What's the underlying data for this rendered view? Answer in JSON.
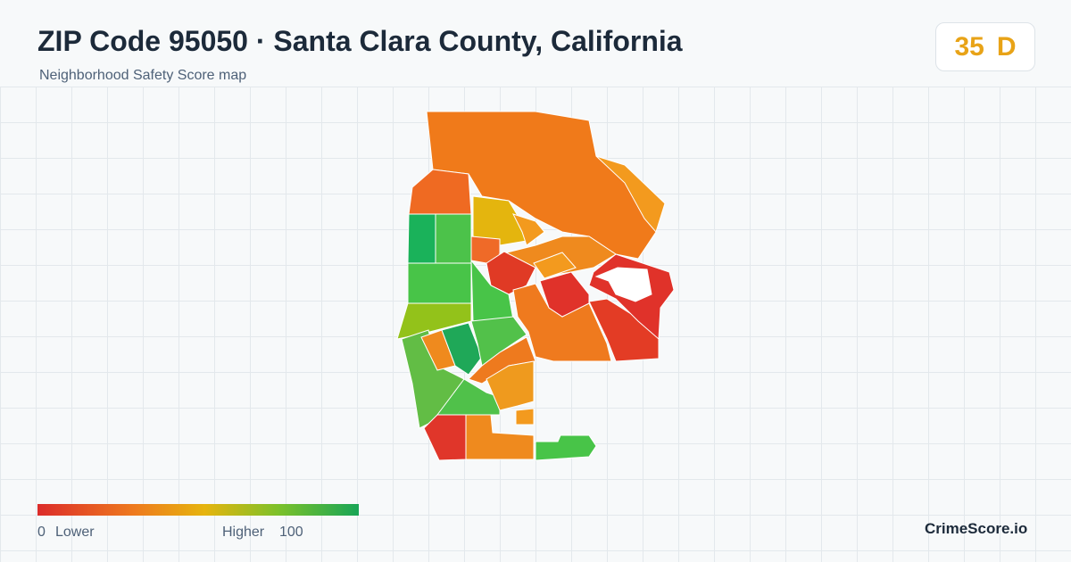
{
  "header": {
    "title": "ZIP Code 95050 · Santa Clara County, California",
    "subtitle": "Neighborhood Safety Score map"
  },
  "score": {
    "value": 35,
    "grade": "D"
  },
  "legend": {
    "min": 0,
    "min_label": "Lower",
    "max_label": "Higher",
    "max": 100
  },
  "footer": {
    "brand": "CrimeScore.io"
  }
}
